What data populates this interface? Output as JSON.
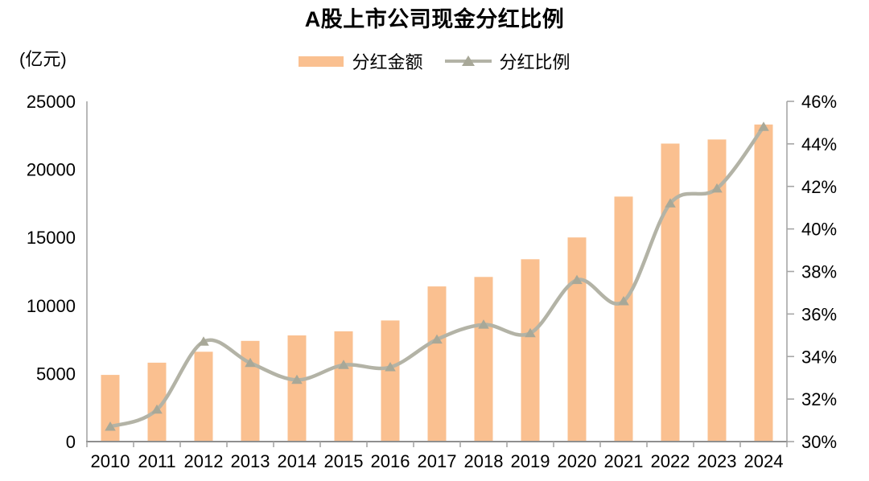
{
  "chart": {
    "title": "A股上市公司现金分红比例",
    "unit_label": "(亿元)",
    "legend": [
      {
        "label": "分红金额"
      },
      {
        "label": "分红比例"
      }
    ]
  },
  "chart_data": {
    "type": "bar+line",
    "title": "A股上市公司现金分红比例",
    "categories": [
      "2010",
      "2011",
      "2012",
      "2013",
      "2014",
      "2015",
      "2016",
      "2017",
      "2018",
      "2019",
      "2020",
      "2021",
      "2022",
      "2023",
      "2024"
    ],
    "series": [
      {
        "name": "分红金额",
        "type": "bar",
        "axis": "left",
        "unit": "亿元",
        "color": "#FAC090",
        "values": [
          4900,
          5800,
          6600,
          7400,
          7800,
          8100,
          8900,
          11400,
          12100,
          13400,
          15000,
          18000,
          21900,
          22200,
          23300
        ]
      },
      {
        "name": "分红比例",
        "type": "line",
        "axis": "right",
        "unit": "%",
        "color": "#B3B3A6",
        "marker": "triangle",
        "marker_color": "#A8A898",
        "values": [
          30.7,
          31.5,
          34.7,
          33.7,
          32.9,
          33.6,
          33.5,
          34.8,
          35.5,
          35.1,
          37.6,
          36.6,
          41.2,
          41.9,
          44.8
        ]
      }
    ],
    "axes": {
      "left": {
        "label": "(亿元)",
        "min": 0,
        "max": 25000,
        "step": 5000,
        "tick_labels": [
          "0",
          "5000",
          "10000",
          "15000",
          "20000",
          "25000"
        ]
      },
      "right": {
        "min": 30,
        "max": 46,
        "step": 2,
        "tick_labels": [
          "30%",
          "32%",
          "34%",
          "36%",
          "38%",
          "40%",
          "42%",
          "44%",
          "46%"
        ]
      }
    },
    "grid": false,
    "legend_position": "top-center",
    "colors": {
      "bar": "#FAC090",
      "line": "#B3B3A6",
      "marker": "#A8A898",
      "axis": "#A6A6A6",
      "baseline": "#8F8F8F",
      "text": "#000000"
    }
  }
}
